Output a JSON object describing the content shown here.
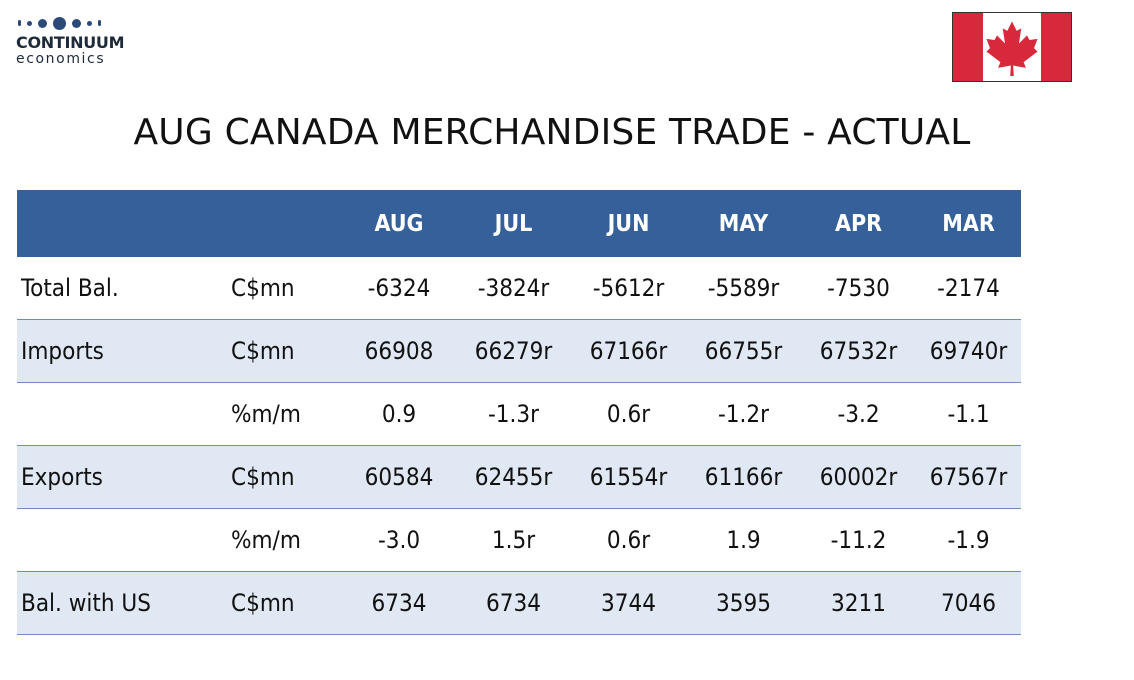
{
  "logo": {
    "brand_top": "CONTINUUM",
    "brand_bottom": "economics",
    "icon": "dots-logo-icon"
  },
  "flag": {
    "icon": "canada-flag-icon",
    "red": "#d8283c"
  },
  "title": "AUG CANADA MERCHANDISE TRADE - ACTUAL",
  "colors": {
    "header_bg": "#35609a",
    "alt_row_bg": "#dfe8f3",
    "rule": "#6f8fb8"
  },
  "table": {
    "headers": [
      "",
      "",
      "AUG",
      "JUL",
      "JUN",
      "MAY",
      "APR",
      "MAR"
    ],
    "rows": [
      {
        "label": "Total Bal.",
        "unit": "C$mn",
        "values": [
          "-6324",
          "-3824r",
          "-5612r",
          "-5589r",
          "-7530",
          "-2174"
        ]
      },
      {
        "label": "Imports",
        "unit": "C$mn",
        "values": [
          "66908",
          "66279r",
          "67166r",
          "66755r",
          "67532r",
          "69740r"
        ]
      },
      {
        "label": "",
        "unit": "%m/m",
        "values": [
          "0.9",
          "-1.3r",
          "0.6r",
          "-1.2r",
          "-3.2",
          "-1.1"
        ]
      },
      {
        "label": "Exports",
        "unit": "C$mn",
        "values": [
          "60584",
          "62455r",
          "61554r",
          "61166r",
          "60002r",
          "67567r"
        ]
      },
      {
        "label": "",
        "unit": "%m/m",
        "values": [
          "-3.0",
          "1.5r",
          "0.6r",
          "1.9",
          "-11.2",
          "-1.9"
        ]
      },
      {
        "label": "Bal. with US",
        "unit": "C$mn",
        "values": [
          "6734",
          "6734",
          "3744",
          "3595",
          "3211",
          "7046"
        ]
      }
    ]
  }
}
